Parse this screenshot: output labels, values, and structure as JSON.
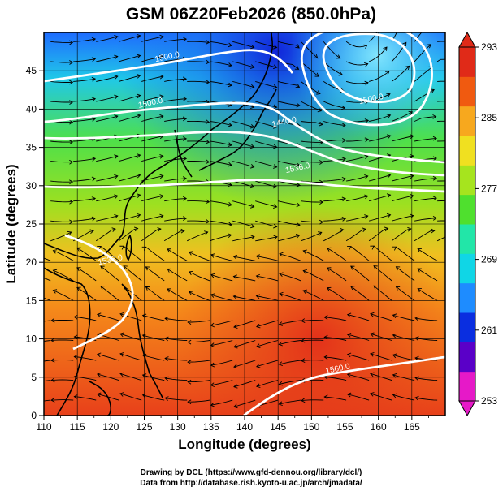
{
  "title": "GSM 06Z20Feb2026 (850.0hPa)",
  "xlabel": "Longitude (degrees)",
  "ylabel": "Latitude  (degrees)",
  "x_ticks": [
    "110",
    "115",
    "120",
    "125",
    "130",
    "135",
    "140",
    "145",
    "150",
    "155",
    "160",
    "165"
  ],
  "y_ticks": [
    "0",
    "5",
    "10",
    "15",
    "20",
    "25",
    "30",
    "35",
    "40",
    "45"
  ],
  "x_range": [
    110,
    170
  ],
  "y_range": [
    0,
    50
  ],
  "colorbar": {
    "labels": [
      "253",
      "261",
      "269",
      "277",
      "285",
      "293"
    ],
    "min": 253,
    "max": 293,
    "colors": [
      "#e619c8",
      "#5a00c8",
      "#0a2ee0",
      "#1e8cff",
      "#10d6e6",
      "#22e6a8",
      "#4fe02e",
      "#a6e41e",
      "#f0e020",
      "#f7a81e",
      "#f05a10",
      "#e02a18"
    ]
  },
  "contour_labels": [
    {
      "text": "1500.0",
      "lon": 128.5,
      "lat": 46.5
    },
    {
      "text": "1500.0",
      "lon": 126.0,
      "lat": 40.5
    },
    {
      "text": "1440.0",
      "lon": 146.0,
      "lat": 38.0
    },
    {
      "text": "1500.0",
      "lon": 159.0,
      "lat": 41.0
    },
    {
      "text": "1536.0",
      "lon": 148.0,
      "lat": 32.0
    },
    {
      "text": "1536.0",
      "lon": 120.0,
      "lat": 20.0
    },
    {
      "text": "1560.0",
      "lon": 154.0,
      "lat": 5.8
    }
  ],
  "credits": {
    "line1": "Drawing by DCL (https://www.gfd-dennou.org/library/dcl/)",
    "line2": "Data from http://database.rish.kyoto-u.ac.jp/arch/jmadata/"
  }
}
